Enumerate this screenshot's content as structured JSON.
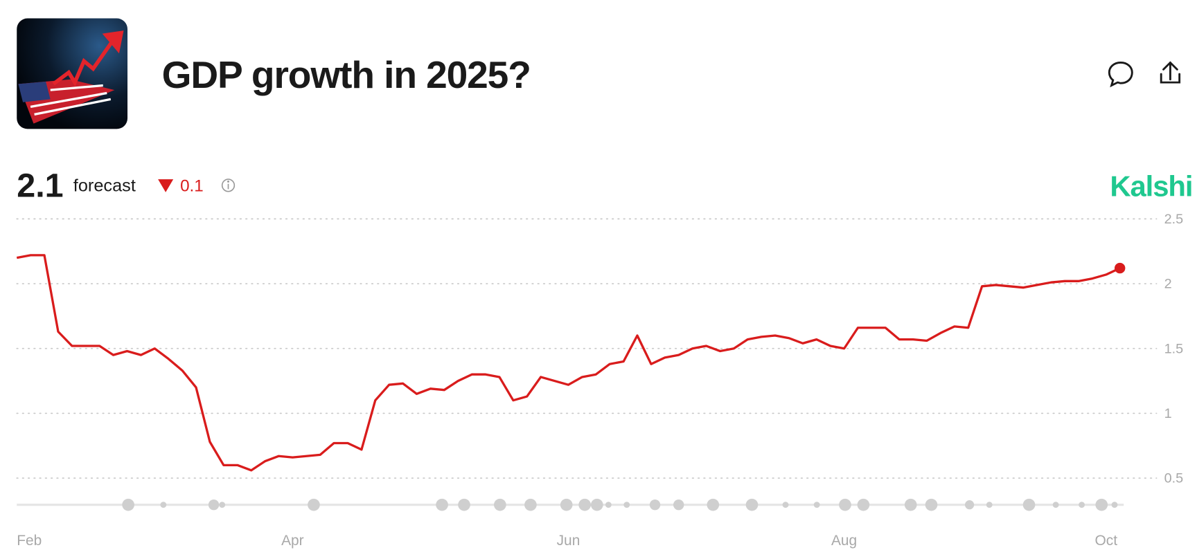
{
  "header": {
    "title": "GDP growth in 2025?",
    "forecast_value": 2.1,
    "forecast_label": "forecast",
    "change": 0.1,
    "change_direction": "down",
    "brand": "Kalshi"
  },
  "chart_data": {
    "type": "line",
    "categories": [
      "Feb",
      null,
      null,
      null,
      null,
      null,
      null,
      null,
      null,
      null,
      null,
      null,
      null,
      null,
      null,
      null,
      null,
      null,
      null,
      null,
      "Apr",
      null,
      null,
      null,
      null,
      null,
      null,
      null,
      null,
      null,
      null,
      null,
      null,
      null,
      null,
      null,
      null,
      null,
      null,
      null,
      "Jun",
      null,
      null,
      null,
      null,
      null,
      null,
      null,
      null,
      null,
      null,
      null,
      null,
      null,
      null,
      null,
      null,
      null,
      null,
      null,
      "Aug",
      null,
      null,
      null,
      null,
      null,
      null,
      null,
      null,
      null,
      null,
      null,
      null,
      null,
      null,
      null,
      null,
      null,
      null,
      "Oct",
      null
    ],
    "series": [
      {
        "color": "#d91c1c",
        "values": [
          2.2,
          2.22,
          2.22,
          1.63,
          1.52,
          1.52,
          1.52,
          1.45,
          1.48,
          1.45,
          1.5,
          1.42,
          1.33,
          1.2,
          0.78,
          0.6,
          0.6,
          0.56,
          0.63,
          0.67,
          0.66,
          0.67,
          0.68,
          0.77,
          0.77,
          0.72,
          1.1,
          1.22,
          1.23,
          1.15,
          1.19,
          1.18,
          1.25,
          1.3,
          1.3,
          1.28,
          1.1,
          1.13,
          1.28,
          1.25,
          1.22,
          1.28,
          1.3,
          1.38,
          1.4,
          1.6,
          1.38,
          1.43,
          1.45,
          1.5,
          1.52,
          1.48,
          1.5,
          1.57,
          1.59,
          1.6,
          1.58,
          1.54,
          1.57,
          1.52,
          1.5,
          1.66,
          1.66,
          1.66,
          1.57,
          1.57,
          1.56,
          1.62,
          1.67,
          1.66,
          1.98,
          1.99,
          1.98,
          1.97,
          1.99,
          2.01,
          2.02,
          2.02,
          2.04,
          2.07,
          2.12
        ]
      }
    ],
    "ylim": [
      0.4,
      2.5
    ],
    "yticks": [
      0.5,
      1,
      1.5,
      2,
      2.5
    ],
    "grid": true
  }
}
